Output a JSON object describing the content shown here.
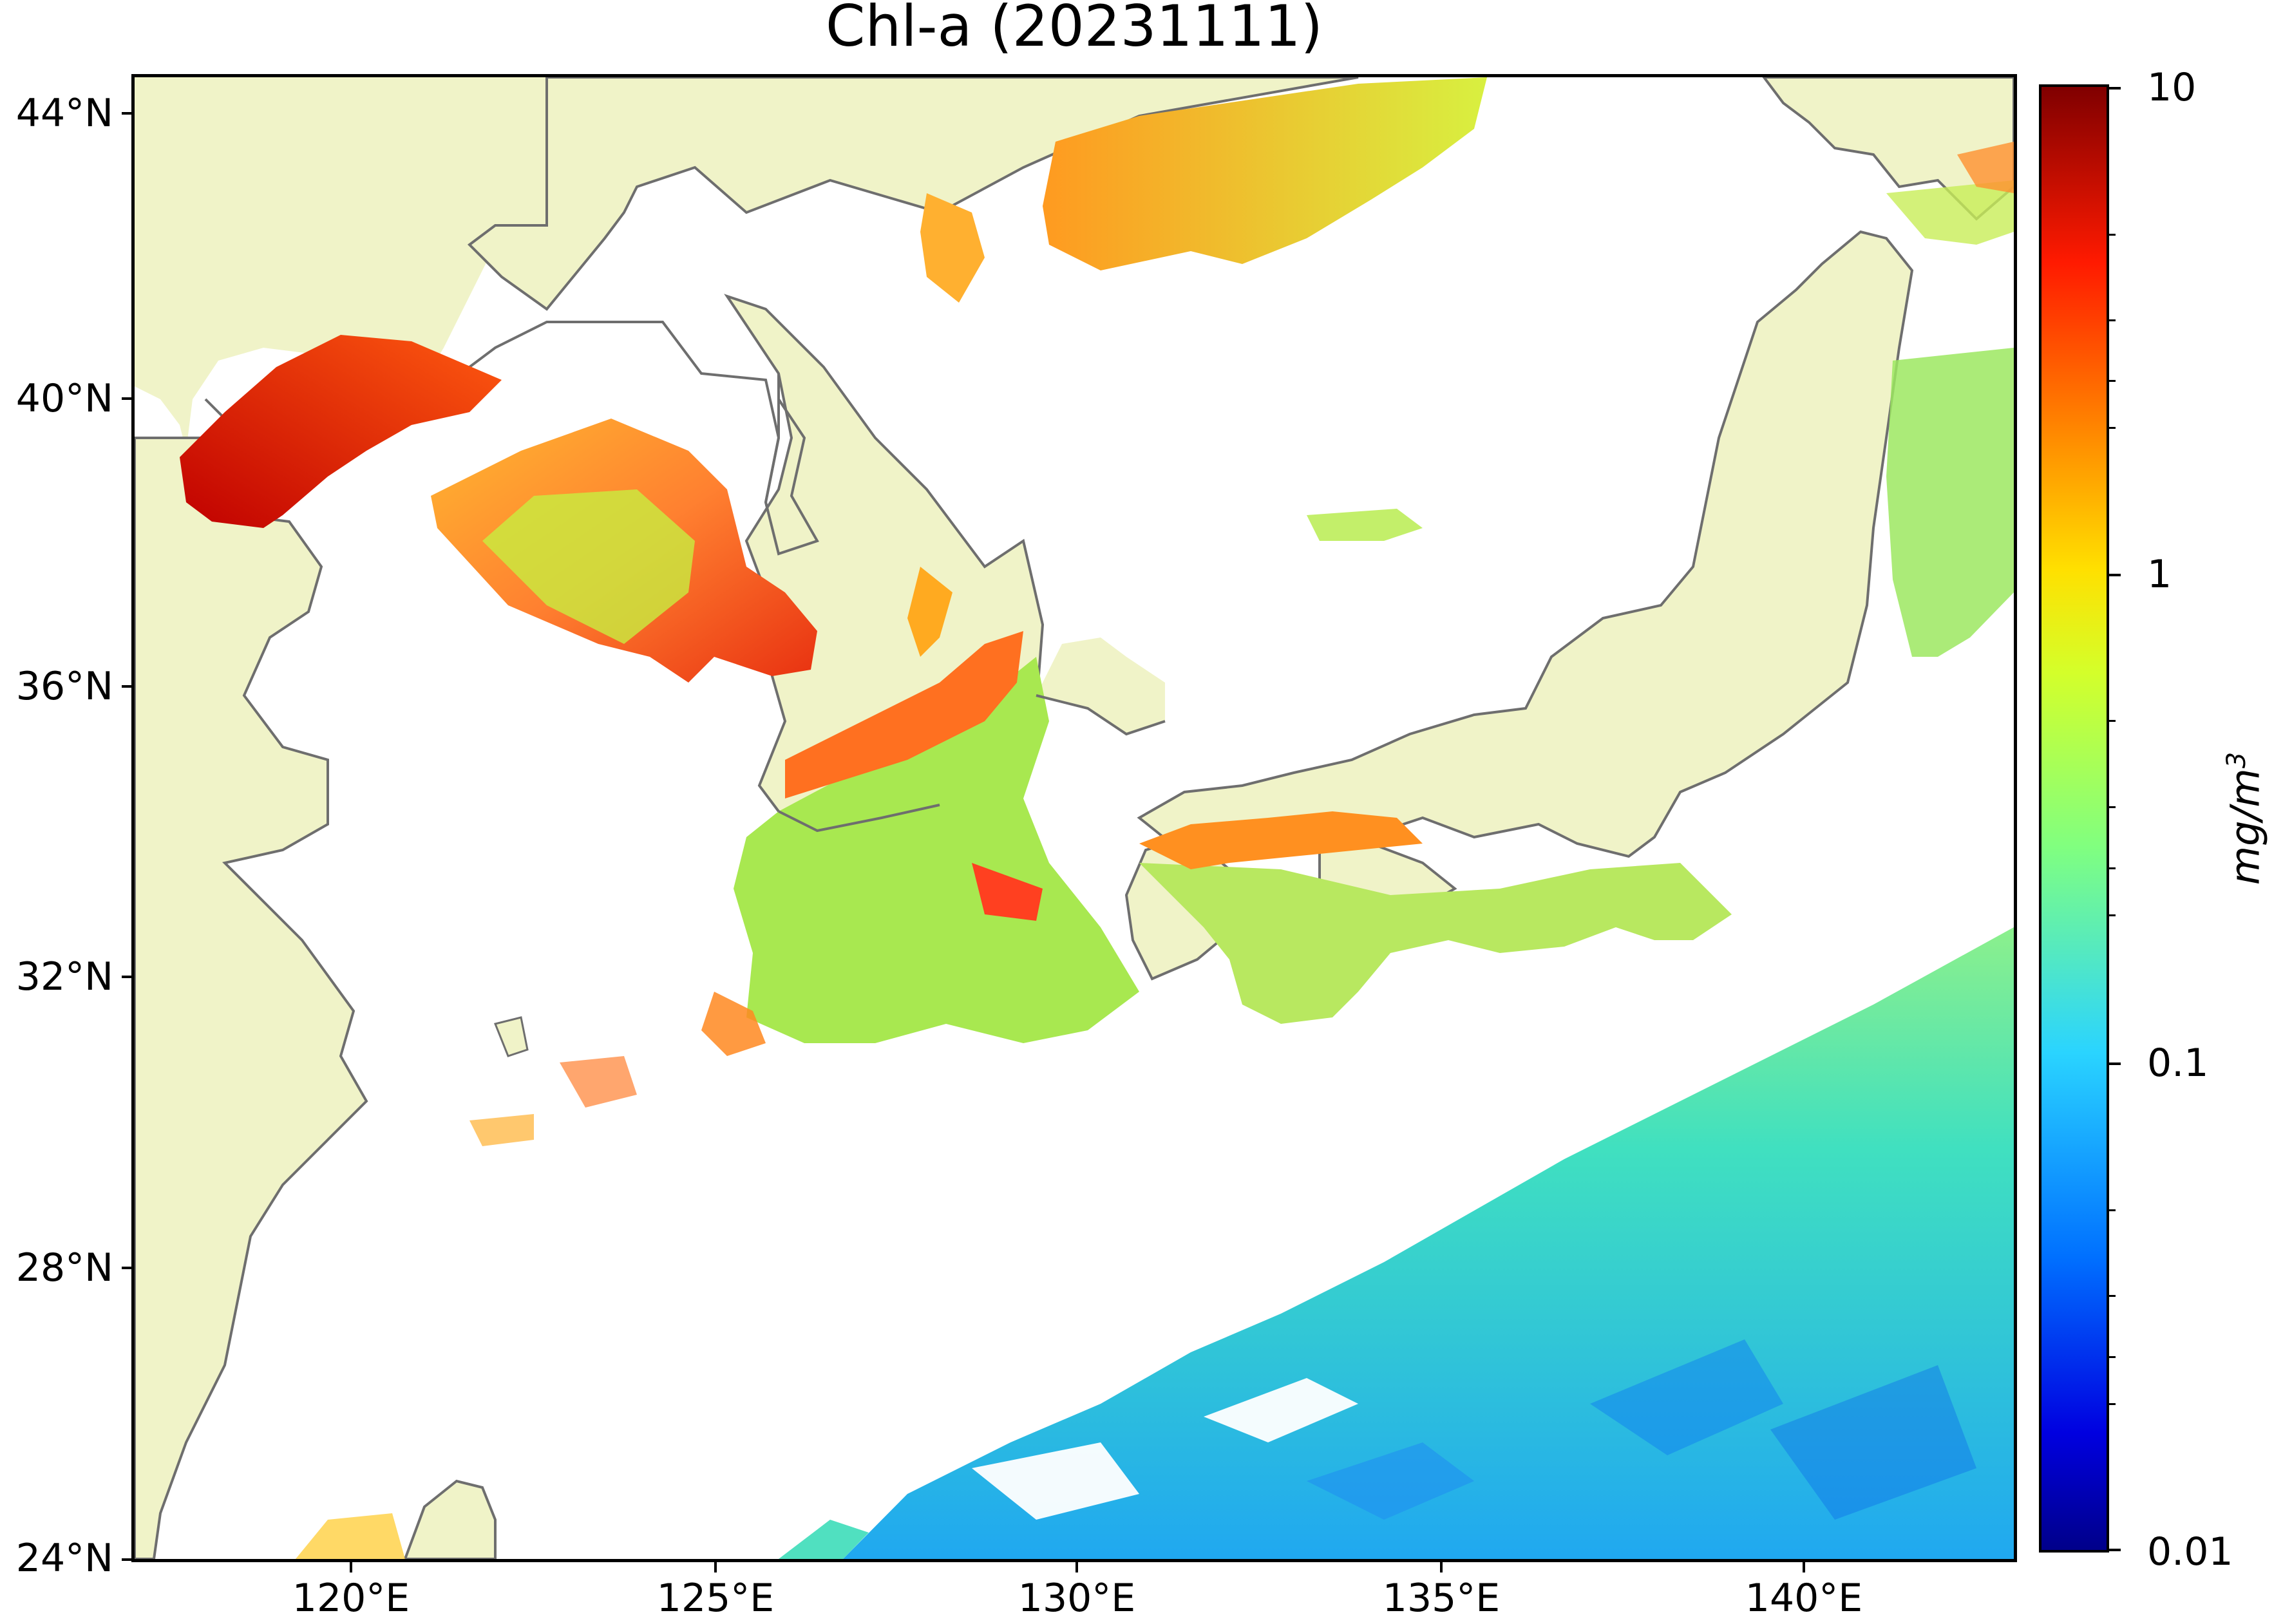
{
  "title": "Chl-a (20231111)",
  "map": {
    "lat_ticks": [
      "44°N",
      "40°N",
      "36°N",
      "32°N",
      "28°N",
      "24°N"
    ],
    "lon_ticks": [
      "120°E",
      "125°E",
      "130°E",
      "135°E",
      "140°E"
    ],
    "land_color": "#f0f3c8",
    "coast_color": "#6e6e6e",
    "background_color": "#ffffff"
  },
  "colorbar": {
    "ticks": [
      "10",
      "1",
      "0.1",
      "0.01"
    ],
    "unit": "mg/m",
    "unit_superscript": "3",
    "scale": "log",
    "colormap": "jet"
  }
}
